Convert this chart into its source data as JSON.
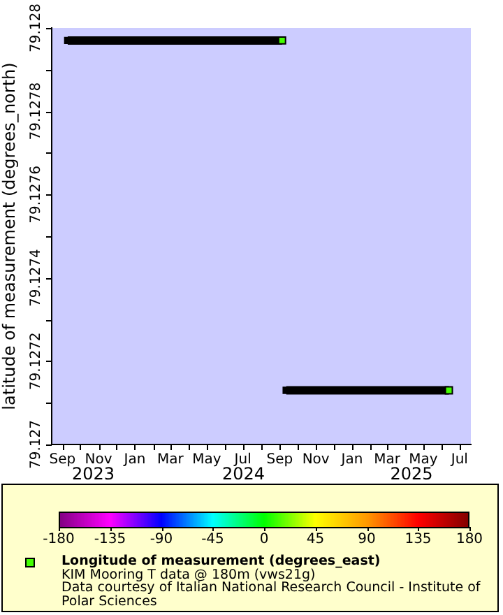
{
  "chart_data": {
    "type": "scatter",
    "ylabel": "latitude of measurement (degrees_north)",
    "clabel": "Longitude of measurement (degrees_east)",
    "marker": "square",
    "xlim": [
      "2023-08-14",
      "2025-07-20"
    ],
    "xticks": [
      {
        "value": "2023-09",
        "label": "Sep"
      },
      {
        "value": "2023-10",
        "label": null
      },
      {
        "value": "2023-11",
        "label": "Nov"
      },
      {
        "value": "2023-12",
        "label": null
      },
      {
        "value": "2024-01",
        "label": "Jan"
      },
      {
        "value": "2024-02",
        "label": null
      },
      {
        "value": "2024-03",
        "label": "Mar"
      },
      {
        "value": "2024-04",
        "label": null
      },
      {
        "value": "2024-05",
        "label": "May"
      },
      {
        "value": "2024-06",
        "label": null
      },
      {
        "value": "2024-07",
        "label": "Jul"
      },
      {
        "value": "2024-08",
        "label": null
      },
      {
        "value": "2024-09",
        "label": "Sep"
      },
      {
        "value": "2024-10",
        "label": null
      },
      {
        "value": "2024-11",
        "label": "Nov"
      },
      {
        "value": "2024-12",
        "label": null
      },
      {
        "value": "2025-01",
        "label": "Jan"
      },
      {
        "value": "2025-02",
        "label": null
      },
      {
        "value": "2025-03",
        "label": "Mar"
      },
      {
        "value": "2025-04",
        "label": null
      },
      {
        "value": "2025-05",
        "label": "May"
      },
      {
        "value": "2025-06",
        "label": null
      },
      {
        "value": "2025-07",
        "label": "Jul"
      }
    ],
    "ylim": [
      79.127,
      79.128
    ],
    "yticks": [
      79.127,
      {
        "value": 79.1271,
        "label": null
      },
      79.1272,
      {
        "value": 79.1273,
        "label": null
      },
      79.1274,
      {
        "value": 79.1275,
        "label": null
      },
      79.1276,
      {
        "value": 79.1277,
        "label": null
      },
      79.1278,
      {
        "value": 79.1279,
        "label": null
      },
      79.128
    ],
    "clim": [
      -180,
      180
    ],
    "cticks": [
      -180,
      -135,
      -90,
      -45,
      0,
      45,
      90,
      135,
      180
    ],
    "annotations": [
      "2023",
      "2024",
      "2025",
      "KIM Mooring T data @ 180m (vws21g)",
      "Data courtesy of Italian National Research Council - Institute of Polar Sciences"
    ],
    "series": [
      {
        "type": "line",
        "color": "#000000",
        "x": [
          "2023-09-10",
          "2024-09-05"
        ],
        "values": [
          79.12797,
          79.12797
        ]
      },
      {
        "type": "line",
        "color": "#000000",
        "x": [
          "2024-09-12",
          "2025-06-13"
        ],
        "values": [
          79.12713,
          79.12713
        ]
      },
      {
        "x": [
          "2024-09-05",
          "2025-06-13"
        ],
        "values": [
          79.12797,
          79.12713
        ],
        "cvalues": [
          12,
          12
        ]
      }
    ]
  }
}
